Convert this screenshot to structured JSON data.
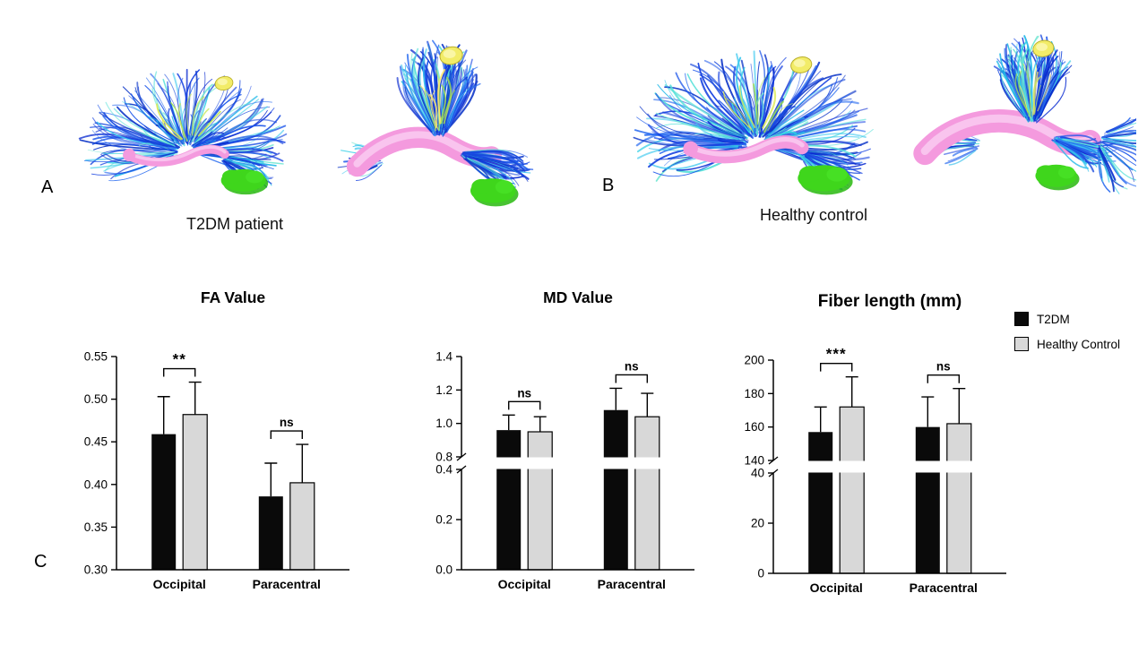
{
  "figure": {
    "panel_a": {
      "label": "A",
      "caption": "T2DM patient"
    },
    "panel_b": {
      "label": "B",
      "caption": "Healthy control"
    },
    "panel_c": {
      "label": "C"
    },
    "legend": {
      "items": [
        {
          "label": "T2DM",
          "color": "#0a0a0a"
        },
        {
          "label": "Healthy Control",
          "color": "#d8d8d8"
        }
      ]
    }
  },
  "chart_data": [
    {
      "type": "bar",
      "title": "FA Value",
      "categories": [
        "Occipital",
        "Paracentral"
      ],
      "series": [
        {
          "name": "T2DM",
          "values": [
            0.459,
            0.386
          ],
          "errors": [
            0.044,
            0.039
          ]
        },
        {
          "name": "Healthy Control",
          "values": [
            0.482,
            0.402
          ],
          "errors": [
            0.038,
            0.045
          ]
        }
      ],
      "significance": [
        "**",
        "ns"
      ],
      "axis": {
        "decimals": 2,
        "segments": [
          {
            "min": 0.3,
            "max": 0.55,
            "ticks": [
              0.3,
              0.35,
              0.4,
              0.45,
              0.5,
              0.55
            ]
          }
        ]
      },
      "grid": false,
      "legend_position": "outside-right"
    },
    {
      "type": "bar",
      "title": "MD Value",
      "categories": [
        "Occipital",
        "Paracentral"
      ],
      "series": [
        {
          "name": "T2DM",
          "values": [
            0.96,
            1.08
          ],
          "errors": [
            0.09,
            0.13
          ]
        },
        {
          "name": "Healthy Control",
          "values": [
            0.95,
            1.04
          ],
          "errors": [
            0.09,
            0.14
          ]
        }
      ],
      "significance": [
        "ns",
        "ns"
      ],
      "axis": {
        "decimals": 1,
        "axis_break": true,
        "segments": [
          {
            "min": 0.0,
            "max": 0.4,
            "ticks": [
              0.0,
              0.2,
              0.4
            ]
          },
          {
            "min": 0.8,
            "max": 1.4,
            "ticks": [
              0.8,
              1.0,
              1.2,
              1.4
            ]
          }
        ]
      },
      "grid": false,
      "legend_position": "outside-right"
    },
    {
      "type": "bar",
      "title": "Fiber length (mm)",
      "categories": [
        "Occipital",
        "Paracentral"
      ],
      "series": [
        {
          "name": "T2DM",
          "values": [
            157,
            160
          ],
          "errors": [
            15,
            18
          ]
        },
        {
          "name": "Healthy Control",
          "values": [
            172,
            162
          ],
          "errors": [
            18,
            21
          ]
        }
      ],
      "significance": [
        "***",
        "ns"
      ],
      "axis": {
        "decimals": 0,
        "axis_break": true,
        "segments": [
          {
            "min": 0,
            "max": 40,
            "ticks": [
              0,
              20,
              40
            ]
          },
          {
            "min": 140,
            "max": 200,
            "ticks": [
              140,
              160,
              180,
              200
            ]
          }
        ]
      },
      "grid": false,
      "legend_position": "outside-right"
    }
  ]
}
